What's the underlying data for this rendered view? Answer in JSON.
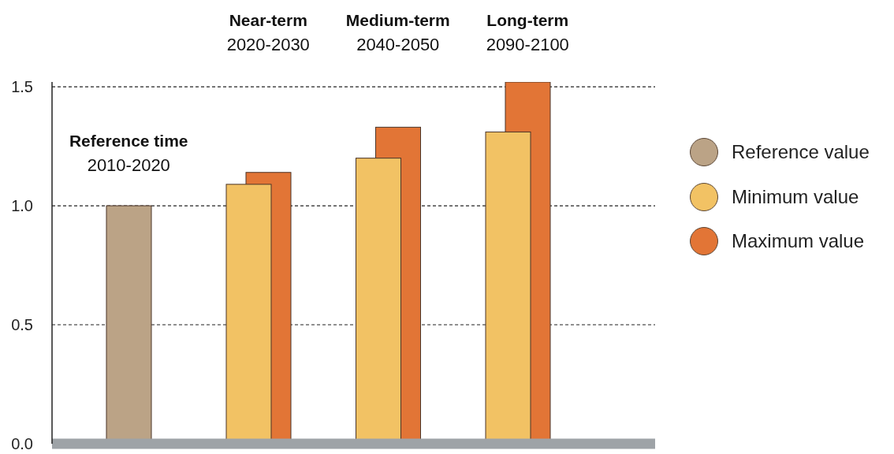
{
  "chart_data": {
    "type": "bar",
    "categories": [
      "Reference time\n2010-2020",
      "Near-term\n2020-2030",
      "Medium-term\n2040-2050",
      "Long-term\n2090-2100"
    ],
    "series": [
      {
        "name": "Reference value",
        "color": "#bba386",
        "values": [
          1.0,
          null,
          null,
          null
        ]
      },
      {
        "name": "Minimum value",
        "color": "#f2c264",
        "values": [
          null,
          1.09,
          1.2,
          1.31
        ]
      },
      {
        "name": "Maximum value",
        "color": "#e27536",
        "values": [
          null,
          1.14,
          1.33,
          1.52
        ]
      }
    ],
    "ylim": [
      0,
      1.52
    ],
    "yticks": [
      {
        "value": 0,
        "label": "0.0"
      },
      0.5,
      {
        "value": 1,
        "label": "1.0"
      },
      1.5
    ],
    "grid": "y",
    "legend": "right"
  }
}
